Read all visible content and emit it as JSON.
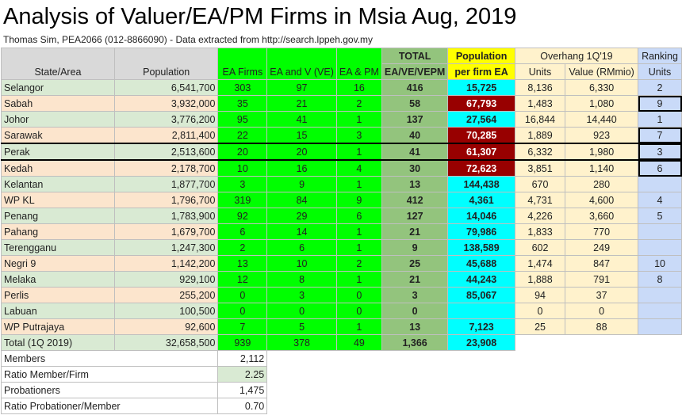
{
  "title": "Analysis of Valuer/EA/PM Firms in Msia Aug, 2019",
  "subtitle": "Thomas Sim, PEA2066 (012-8866090) - Data extracted from http://search.lppeh.gov.my",
  "headers": {
    "state": "State/Area",
    "population": "Population",
    "ea_firms": "EA Firms",
    "ea_v": "EA and V (VE)",
    "ea_pm": "EA & PM",
    "total_top": "TOTAL",
    "total_bottom": "EA/VE/VEPM",
    "pop_top": "Population",
    "pop_bottom": "per firm EA",
    "overhang": "Overhang 1Q'19",
    "units": "Units",
    "value": "Value (RMmio)",
    "ranking": "Ranking",
    "ranking_units": "Units"
  },
  "rows": [
    {
      "state": "Selangor",
      "population": "6,541,700",
      "ea": "303",
      "eav": "97",
      "eapm": "16",
      "total": "416",
      "perfirm": "15,725",
      "units": "8,136",
      "value": "6,330",
      "rank": "2"
    },
    {
      "state": "Sabah",
      "population": "3,932,000",
      "ea": "35",
      "eav": "21",
      "eapm": "2",
      "total": "58",
      "perfirm": "67,793",
      "units": "1,483",
      "value": "1,080",
      "rank": "9"
    },
    {
      "state": "Johor",
      "population": "3,776,200",
      "ea": "95",
      "eav": "41",
      "eapm": "1",
      "total": "137",
      "perfirm": "27,564",
      "units": "16,844",
      "value": "14,440",
      "rank": "1"
    },
    {
      "state": "Sarawak",
      "population": "2,811,400",
      "ea": "22",
      "eav": "15",
      "eapm": "3",
      "total": "40",
      "perfirm": "70,285",
      "units": "1,889",
      "value": "923",
      "rank": "7"
    },
    {
      "state": "Perak",
      "population": "2,513,600",
      "ea": "20",
      "eav": "20",
      "eapm": "1",
      "total": "41",
      "perfirm": "61,307",
      "units": "6,332",
      "value": "1,980",
      "rank": "3"
    },
    {
      "state": "Kedah",
      "population": "2,178,700",
      "ea": "10",
      "eav": "16",
      "eapm": "4",
      "total": "30",
      "perfirm": "72,623",
      "units": "3,851",
      "value": "1,140",
      "rank": "6"
    },
    {
      "state": "Kelantan",
      "population": "1,877,700",
      "ea": "3",
      "eav": "9",
      "eapm": "1",
      "total": "13",
      "perfirm": "144,438",
      "units": "670",
      "value": "280",
      "rank": ""
    },
    {
      "state": "WP KL",
      "population": "1,796,700",
      "ea": "319",
      "eav": "84",
      "eapm": "9",
      "total": "412",
      "perfirm": "4,361",
      "units": "4,731",
      "value": "4,600",
      "rank": "4"
    },
    {
      "state": "Penang",
      "population": "1,783,900",
      "ea": "92",
      "eav": "29",
      "eapm": "6",
      "total": "127",
      "perfirm": "14,046",
      "units": "4,226",
      "value": "3,660",
      "rank": "5"
    },
    {
      "state": "Pahang",
      "population": "1,679,700",
      "ea": "6",
      "eav": "14",
      "eapm": "1",
      "total": "21",
      "perfirm": "79,986",
      "units": "1,833",
      "value": "770",
      "rank": ""
    },
    {
      "state": "Terengganu",
      "population": "1,247,300",
      "ea": "2",
      "eav": "6",
      "eapm": "1",
      "total": "9",
      "perfirm": "138,589",
      "units": "602",
      "value": "249",
      "rank": ""
    },
    {
      "state": "Negri 9",
      "population": "1,142,200",
      "ea": "13",
      "eav": "10",
      "eapm": "2",
      "total": "25",
      "perfirm": "45,688",
      "units": "1,474",
      "value": "847",
      "rank": "10"
    },
    {
      "state": "Melaka",
      "population": "929,100",
      "ea": "12",
      "eav": "8",
      "eapm": "1",
      "total": "21",
      "perfirm": "44,243",
      "units": "1,888",
      "value": "791",
      "rank": "8"
    },
    {
      "state": "Perlis",
      "population": "255,200",
      "ea": "0",
      "eav": "3",
      "eapm": "0",
      "total": "3",
      "perfirm": "85,067",
      "units": "94",
      "value": "37",
      "rank": ""
    },
    {
      "state": "Labuan",
      "population": "100,500",
      "ea": "0",
      "eav": "0",
      "eapm": "0",
      "total": "0",
      "perfirm": "",
      "units": "0",
      "value": "0",
      "rank": ""
    },
    {
      "state": "WP Putrajaya",
      "population": "92,600",
      "ea": "7",
      "eav": "5",
      "eapm": "1",
      "total": "13",
      "perfirm": "7,123",
      "units": "25",
      "value": "88",
      "rank": ""
    }
  ],
  "total_row": {
    "state": "Total (1Q 2019)",
    "population": "32,658,500",
    "ea": "939",
    "eav": "378",
    "eapm": "49",
    "total": "1,366",
    "perfirm": "23,908"
  },
  "summary": [
    {
      "label": "Members",
      "value": "2,112"
    },
    {
      "label": "Ratio Member/Firm",
      "value": "2.25"
    },
    {
      "label": "Probationers",
      "value": "1,475"
    },
    {
      "label": "Ratio Probationer/Member",
      "value": "0.70"
    }
  ],
  "colors": {
    "header_gray": "#d9d9d9",
    "ea_green": "#00ff00",
    "total_green": "#93c47d",
    "pop_yellow": "#ffff00",
    "perfirm_cyan": "#00ffff",
    "highlight_darkred": "#980000",
    "overhang_cream": "#fff2cc",
    "ranking_blue": "#c9daf8",
    "row_peach": "#fce5cd"
  }
}
